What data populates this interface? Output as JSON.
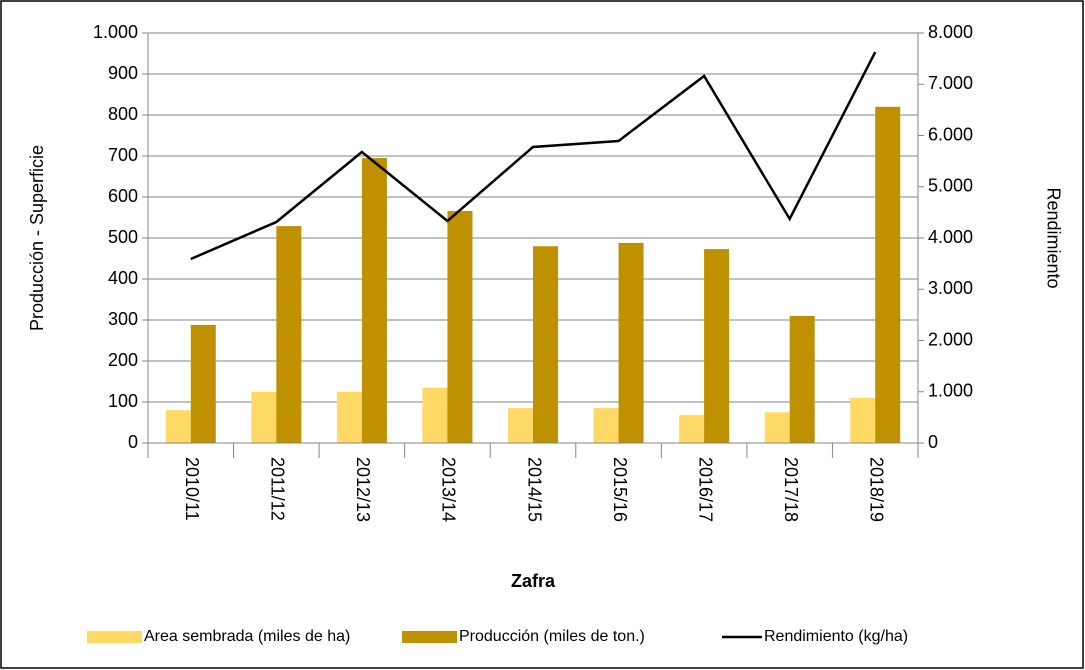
{
  "chart_data": {
    "type": "bar",
    "x_label": "Zafra",
    "y_label": "Producción - Superficie",
    "y2_label": "Rendimiento",
    "categories": [
      "2010/11",
      "2011/12",
      "2012/13",
      "2013/14",
      "2014/15",
      "2015/16",
      "2016/17",
      "2017/18",
      "2018/19"
    ],
    "series": [
      {
        "name": "Area sembrada (miles de ha)",
        "type": "bar",
        "color": "#FFD966",
        "values": [
          80,
          125,
          125,
          135,
          85,
          85,
          68,
          75,
          110
        ]
      },
      {
        "name": "Producción (miles de ton.)",
        "type": "bar",
        "color": "#BF9000",
        "values": [
          288,
          529,
          695,
          566,
          480,
          488,
          473,
          310,
          820
        ]
      },
      {
        "name": "Rendimiento (kg/ha)",
        "type": "line",
        "axis": "y2",
        "color": "#000000",
        "values": [
          3590,
          4312,
          5678,
          4332,
          5776,
          5893,
          7161,
          4371,
          7629
        ]
      }
    ],
    "ylim": [
      0,
      1000
    ],
    "yticks": [
      0,
      100,
      200,
      300,
      400,
      500,
      600,
      700,
      800,
      900,
      {
        "value": 1000,
        "label": "1.000"
      }
    ],
    "y2lim": [
      0,
      8000
    ],
    "y2ticks": [
      0,
      {
        "value": 1000,
        "label": "1.000"
      },
      {
        "value": 2000,
        "label": "2.000"
      },
      {
        "value": 3000,
        "label": "3.000"
      },
      {
        "value": 4000,
        "label": "4.000"
      },
      {
        "value": 5000,
        "label": "5.000"
      },
      {
        "value": 6000,
        "label": "6.000"
      },
      {
        "value": 7000,
        "label": "7.000"
      },
      {
        "value": 8000,
        "label": "8.000"
      }
    ],
    "grid": true,
    "legend": "bottom"
  }
}
